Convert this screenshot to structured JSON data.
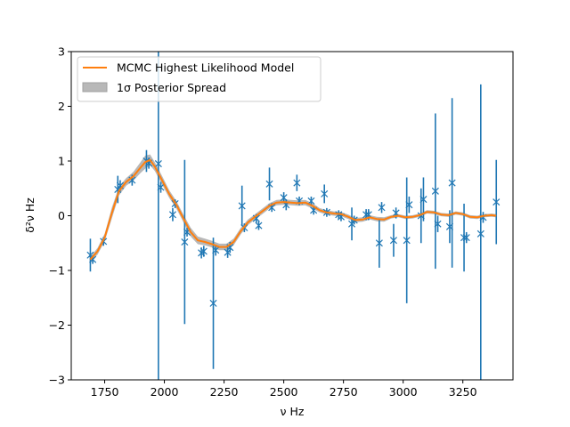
{
  "chart_data": {
    "type": "scatter",
    "title": "",
    "xlabel": "ν Hz",
    "ylabel": "δ²ν Hz",
    "xlim": [
      1610,
      3460
    ],
    "ylim": [
      -3,
      3
    ],
    "xticks": [
      1750,
      2000,
      2250,
      2500,
      2750,
      3000,
      3250
    ],
    "yticks": [
      -3,
      -2,
      -1,
      0,
      1,
      2,
      3
    ],
    "grid": false,
    "legend_position": "top-left",
    "colors": {
      "data": "#1f77b4",
      "model": "#ff7f0e",
      "spread": "#a0a0a0"
    },
    "legend": [
      {
        "label": "MCMC Highest Likelihood Model",
        "kind": "line"
      },
      {
        "label": "1σ Posterior Spread",
        "kind": "patch"
      }
    ],
    "observations": {
      "points": [
        {
          "x": 1690,
          "y": -0.72,
          "err": 0.3
        },
        {
          "x": 1700,
          "y": -0.8,
          "err": 0.08
        },
        {
          "x": 1745,
          "y": -0.47,
          "err": 0.08
        },
        {
          "x": 1805,
          "y": 0.48,
          "err": 0.25
        },
        {
          "x": 1815,
          "y": 0.55,
          "err": 0.1
        },
        {
          "x": 1865,
          "y": 0.65,
          "err": 0.1
        },
        {
          "x": 1925,
          "y": 1.0,
          "err": 0.2
        },
        {
          "x": 1935,
          "y": 0.96,
          "err": 0.1
        },
        {
          "x": 1975,
          "y": 0.95,
          "err": 4.3
        },
        {
          "x": 1985,
          "y": 0.52,
          "err": 0.1
        },
        {
          "x": 2035,
          "y": 0.02,
          "err": 0.12
        },
        {
          "x": 2045,
          "y": 0.22,
          "err": 0.08
        },
        {
          "x": 2085,
          "y": -0.48,
          "err": 1.5
        },
        {
          "x": 2095,
          "y": -0.3,
          "err": 0.08
        },
        {
          "x": 2155,
          "y": -0.68,
          "err": 0.1
        },
        {
          "x": 2165,
          "y": -0.65,
          "err": 0.1
        },
        {
          "x": 2205,
          "y": -1.6,
          "err": 1.2
        },
        {
          "x": 2215,
          "y": -0.63,
          "err": 0.1
        },
        {
          "x": 2265,
          "y": -0.67,
          "err": 0.1
        },
        {
          "x": 2275,
          "y": -0.58,
          "err": 0.1
        },
        {
          "x": 2325,
          "y": 0.18,
          "err": 0.37
        },
        {
          "x": 2335,
          "y": -0.22,
          "err": 0.08
        },
        {
          "x": 2385,
          "y": -0.05,
          "err": 0.08
        },
        {
          "x": 2395,
          "y": -0.18,
          "err": 0.08
        },
        {
          "x": 2440,
          "y": 0.58,
          "err": 0.3
        },
        {
          "x": 2450,
          "y": 0.15,
          "err": 0.08
        },
        {
          "x": 2500,
          "y": 0.33,
          "err": 0.1
        },
        {
          "x": 2510,
          "y": 0.2,
          "err": 0.1
        },
        {
          "x": 2555,
          "y": 0.6,
          "err": 0.15
        },
        {
          "x": 2565,
          "y": 0.27,
          "err": 0.08
        },
        {
          "x": 2615,
          "y": 0.27,
          "err": 0.08
        },
        {
          "x": 2625,
          "y": 0.1,
          "err": 0.08
        },
        {
          "x": 2670,
          "y": 0.4,
          "err": 0.17
        },
        {
          "x": 2680,
          "y": 0.06,
          "err": 0.08
        },
        {
          "x": 2730,
          "y": 0.02,
          "err": 0.08
        },
        {
          "x": 2740,
          "y": -0.02,
          "err": 0.08
        },
        {
          "x": 2785,
          "y": -0.15,
          "err": 0.3
        },
        {
          "x": 2795,
          "y": -0.08,
          "err": 0.08
        },
        {
          "x": 2845,
          "y": 0.02,
          "err": 0.1
        },
        {
          "x": 2855,
          "y": 0.02,
          "err": 0.1
        },
        {
          "x": 2900,
          "y": -0.5,
          "err": 0.45
        },
        {
          "x": 2910,
          "y": 0.15,
          "err": 0.1
        },
        {
          "x": 2960,
          "y": -0.45,
          "err": 0.3
        },
        {
          "x": 2970,
          "y": 0.05,
          "err": 0.1
        },
        {
          "x": 3015,
          "y": -0.45,
          "err": 1.15
        },
        {
          "x": 3025,
          "y": 0.2,
          "err": 0.15
        },
        {
          "x": 3075,
          "y": 0.0,
          "err": 0.5
        },
        {
          "x": 3085,
          "y": 0.3,
          "err": 0.4
        },
        {
          "x": 3135,
          "y": 0.45,
          "err": 1.42
        },
        {
          "x": 3145,
          "y": -0.15,
          "err": 0.15
        },
        {
          "x": 3195,
          "y": -0.2,
          "err": 0.3
        },
        {
          "x": 3205,
          "y": 0.6,
          "err": 1.55
        },
        {
          "x": 3255,
          "y": -0.4,
          "err": 0.62
        },
        {
          "x": 3265,
          "y": -0.4,
          "err": 0.1
        },
        {
          "x": 3325,
          "y": -0.33,
          "err": 2.73
        },
        {
          "x": 3335,
          "y": -0.03,
          "err": 0.1
        },
        {
          "x": 3390,
          "y": 0.25,
          "err": 0.77
        }
      ]
    },
    "model": {
      "x": [
        1690,
        1720,
        1750,
        1780,
        1810,
        1840,
        1870,
        1900,
        1920,
        1940,
        1960,
        1990,
        2020,
        2050,
        2080,
        2110,
        2140,
        2170,
        2200,
        2230,
        2260,
        2290,
        2320,
        2350,
        2380,
        2410,
        2440,
        2470,
        2500,
        2530,
        2560,
        2590,
        2620,
        2650,
        2680,
        2710,
        2740,
        2770,
        2800,
        2830,
        2860,
        2890,
        2920,
        2950,
        2980,
        3010,
        3040,
        3070,
        3100,
        3130,
        3160,
        3190,
        3220,
        3250,
        3280,
        3310,
        3340,
        3370,
        3390
      ],
      "y": [
        -0.8,
        -0.65,
        -0.4,
        0.05,
        0.45,
        0.62,
        0.72,
        0.88,
        0.98,
        1.02,
        0.9,
        0.65,
        0.4,
        0.2,
        -0.05,
        -0.3,
        -0.45,
        -0.48,
        -0.52,
        -0.57,
        -0.57,
        -0.48,
        -0.28,
        -0.12,
        -0.02,
        0.08,
        0.18,
        0.24,
        0.25,
        0.24,
        0.23,
        0.24,
        0.18,
        0.1,
        0.06,
        0.04,
        0.03,
        -0.02,
        -0.08,
        -0.07,
        -0.03,
        -0.06,
        -0.07,
        -0.02,
        0.0,
        -0.03,
        -0.02,
        0.01,
        0.07,
        0.06,
        0.02,
        0.01,
        0.05,
        0.03,
        -0.02,
        -0.03,
        0.0,
        0.01,
        0.0
      ],
      "spread": [
        0.05,
        0.06,
        0.07,
        0.1,
        0.08,
        0.07,
        0.08,
        0.1,
        0.12,
        0.1,
        0.08,
        0.08,
        0.07,
        0.07,
        0.07,
        0.08,
        0.07,
        0.06,
        0.06,
        0.06,
        0.06,
        0.06,
        0.06,
        0.05,
        0.05,
        0.05,
        0.05,
        0.05,
        0.05,
        0.05,
        0.05,
        0.05,
        0.05,
        0.04,
        0.04,
        0.04,
        0.04,
        0.04,
        0.04,
        0.04,
        0.04,
        0.04,
        0.04,
        0.03,
        0.03,
        0.03,
        0.03,
        0.03,
        0.03,
        0.03,
        0.03,
        0.03,
        0.03,
        0.03,
        0.03,
        0.03,
        0.03,
        0.03,
        0.03
      ]
    }
  }
}
